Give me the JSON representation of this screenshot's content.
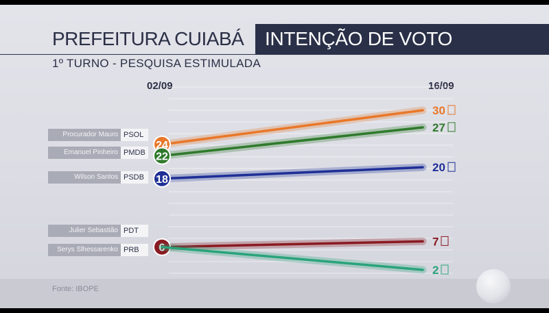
{
  "header": {
    "title_left": "PREFEITURA CUIABÁ",
    "title_right": "INTENÇÃO DE VOTO",
    "subtitle": "1º TURNO - PESQUISA ESTIMULADA"
  },
  "footer": {
    "source": "Fonte: IBOPE"
  },
  "chart_data": {
    "type": "line",
    "x": [
      "02/09",
      "16/09"
    ],
    "ylim": [
      0,
      32
    ],
    "grid": true,
    "series": [
      {
        "name": "Procurador Mauro",
        "party": "PSOL",
        "values": [
          24,
          30
        ],
        "color": "#e8782a",
        "tag": "PSOL"
      },
      {
        "name": "Emanuel Pinheiro",
        "party": "PMDB",
        "values": [
          22,
          27
        ],
        "color": "#2f7a2c",
        "tag": "PMDB"
      },
      {
        "name": "Wilson Santos",
        "party": "PSDB",
        "values": [
          18,
          20
        ],
        "color": "#1e2f96",
        "tag": "PSDB"
      },
      {
        "name": "Julier Sebastião",
        "party": "PDT",
        "values": [
          6,
          7
        ],
        "color": "#8a1a22",
        "tag": "PDT"
      },
      {
        "name": "Serys Slhessarenko",
        "party": "PRB",
        "values": [
          6,
          2
        ],
        "color": "#2aa37a",
        "tag": "PRB"
      }
    ]
  }
}
